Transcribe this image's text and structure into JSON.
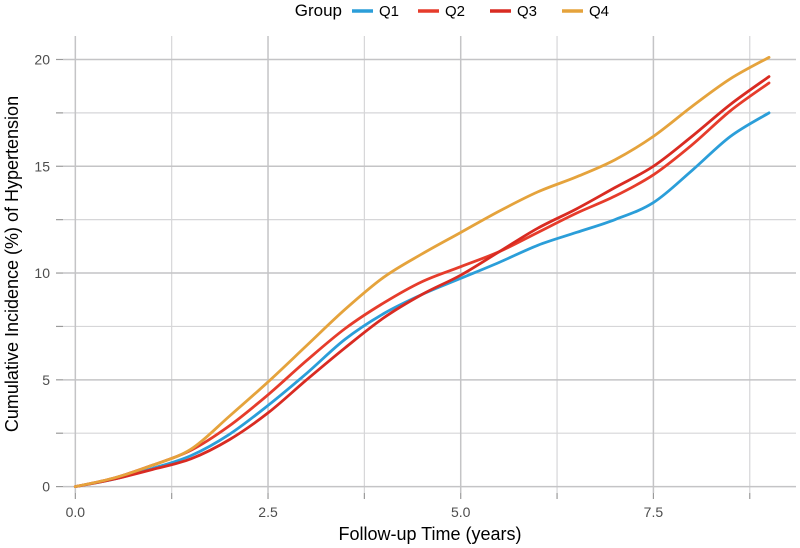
{
  "chart_data": {
    "type": "line",
    "title": "",
    "legend_title": "Group",
    "legend_position": "top-center",
    "xlabel": "Follow-up Time (years)",
    "ylabel": "Cumulative Incidence (%) of Hypertension",
    "grid": "on",
    "x": [
      0,
      0.5,
      1.0,
      1.5,
      2.0,
      2.5,
      3.0,
      3.5,
      4.0,
      4.5,
      5.0,
      5.5,
      6.0,
      6.5,
      7.0,
      7.5,
      8.0,
      8.5,
      9.0
    ],
    "series": [
      {
        "name": "Q1",
        "color": "#2B9ED9",
        "values": [
          0,
          0.35,
          0.85,
          1.45,
          2.45,
          3.8,
          5.3,
          6.9,
          8.1,
          9.0,
          9.75,
          10.5,
          11.3,
          11.9,
          12.5,
          13.3,
          14.8,
          16.4,
          17.5
        ]
      },
      {
        "name": "Q2",
        "color": "#E63C2B",
        "values": [
          0,
          0.4,
          1.0,
          1.7,
          2.85,
          4.3,
          5.9,
          7.4,
          8.6,
          9.6,
          10.3,
          11.0,
          11.9,
          12.8,
          13.6,
          14.6,
          16.0,
          17.6,
          18.9
        ]
      },
      {
        "name": "Q3",
        "color": "#D92B22",
        "values": [
          0,
          0.35,
          0.8,
          1.3,
          2.2,
          3.45,
          5.0,
          6.5,
          7.9,
          9.0,
          9.9,
          11.0,
          12.1,
          13.0,
          14.0,
          15.0,
          16.4,
          17.9,
          19.2
        ]
      },
      {
        "name": "Q4",
        "color": "#E5A33C",
        "values": [
          0,
          0.4,
          1.0,
          1.75,
          3.3,
          4.9,
          6.6,
          8.3,
          9.8,
          10.9,
          11.9,
          12.9,
          13.8,
          14.5,
          15.3,
          16.4,
          17.8,
          19.1,
          20.1
        ]
      }
    ],
    "x_ticks": {
      "major": [
        0,
        2.5,
        5.0,
        7.5
      ],
      "minor": [
        1.25,
        3.75,
        6.25,
        8.75
      ],
      "labels": [
        "0.0",
        "2.5",
        "5.0",
        "7.5"
      ]
    },
    "y_ticks": {
      "major": [
        0,
        5,
        10,
        15,
        20
      ],
      "minor": [
        2.5,
        7.5,
        12.5,
        17.5
      ],
      "labels": [
        "0",
        "5",
        "10",
        "15",
        "20"
      ]
    },
    "xlim": [
      -0.16,
      9.35
    ],
    "ylim": [
      -0.3,
      21.1
    ]
  },
  "colors": {
    "background": "#FFFFFF",
    "grid_major": "#C4C4C6",
    "grid_minor": "#D6D6D8",
    "tick_mark": "#9A9A9A"
  }
}
